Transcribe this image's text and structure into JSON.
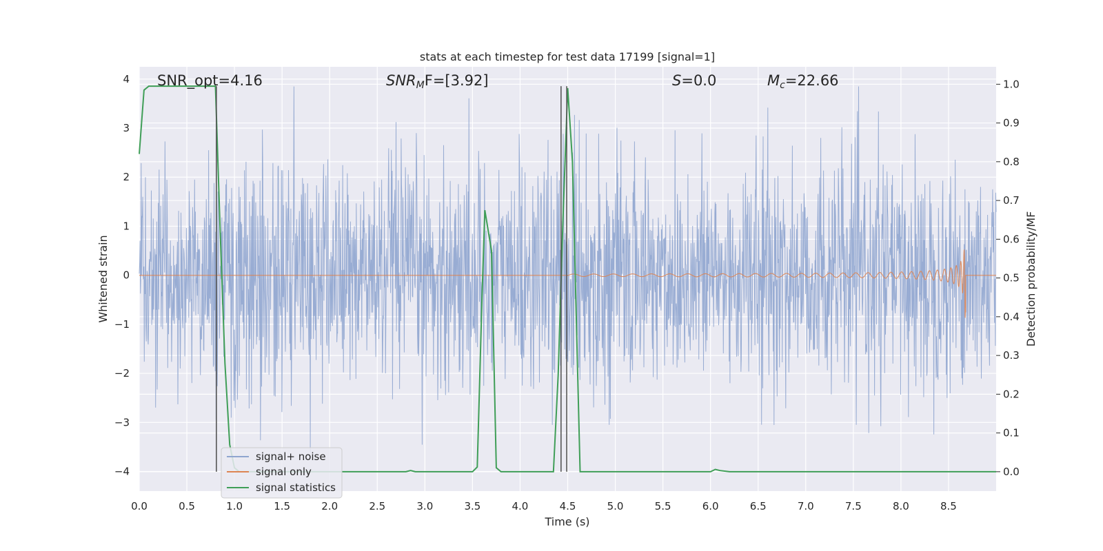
{
  "chart_data": {
    "type": "line",
    "title": "stats at each timestep for test data 17199 [signal=1]",
    "xlabel": "Time (s)",
    "ylabel": "Whitened strain",
    "ylabel_right": "Detection probability/MF",
    "xlim": [
      0,
      9.0
    ],
    "ylim": [
      -4.4,
      4.25
    ],
    "ylim_right": [
      -0.05,
      1.045
    ],
    "x_ticks": [
      "0.0",
      "0.5",
      "1.0",
      "1.5",
      "2.0",
      "2.5",
      "3.0",
      "3.5",
      "4.0",
      "4.5",
      "5.0",
      "5.5",
      "6.0",
      "6.5",
      "7.0",
      "7.5",
      "8.0",
      "8.5"
    ],
    "y_ticks": [
      "−4",
      "−3",
      "−2",
      "−1",
      "0",
      "1",
      "2",
      "3",
      "4"
    ],
    "y_ticks_right": [
      "0.0",
      "0.1",
      "0.2",
      "0.3",
      "0.4",
      "0.5",
      "0.6",
      "0.7",
      "0.8",
      "0.9",
      "1.0"
    ],
    "grid": true,
    "legend_position": "lower-left",
    "annotations": {
      "snr_opt": "SNR_opt=4.16",
      "snr_mf_base": "SNR",
      "snr_mf_sub": "M",
      "snr_mf_rest": "F=[3.92]",
      "s_var": "S",
      "s_rest": "=0.0",
      "mc_base": "M",
      "mc_sub": "c",
      "mc_rest": "=22.66"
    },
    "vertical_lines_x": [
      0.81,
      4.43,
      4.49
    ],
    "series": [
      {
        "name": "signal+ noise",
        "color": "#8fa5cf",
        "description_values": "Gaussian-like whitened noise, approx. range -3.9 to 3.8 over 0 to 9.0 s"
      },
      {
        "name": "signal only",
        "color": "#dd8452",
        "chirp_start": 4.5,
        "chirp_end": 8.68,
        "chirp_peak_amplitude": 0.9
      },
      {
        "name": "signal statistics",
        "color": "#3f9e57",
        "x": [
          0.0,
          0.05,
          0.1,
          0.15,
          0.25,
          0.35,
          0.45,
          0.55,
          0.65,
          0.75,
          0.8,
          0.85,
          0.9,
          0.95,
          1.0,
          1.05,
          1.1,
          1.2,
          1.5,
          2.0,
          2.5,
          2.8,
          2.85,
          2.9,
          3.0,
          3.5,
          3.55,
          3.6,
          3.63,
          3.7,
          3.75,
          3.8,
          4.0,
          4.35,
          4.4,
          4.45,
          4.5,
          4.55,
          4.6,
          4.63,
          5.0,
          5.5,
          6.0,
          6.05,
          6.1,
          6.2,
          6.5,
          7.0,
          7.5,
          8.0,
          8.5,
          9.0
        ],
        "y": [
          0.82,
          0.985,
          0.995,
          0.995,
          0.995,
          0.995,
          0.995,
          0.995,
          0.995,
          0.995,
          0.995,
          0.62,
          0.28,
          0.07,
          0.01,
          0.0,
          0.0,
          0.0,
          0.0,
          0.0,
          0.0,
          0.0,
          0.003,
          0.0,
          0.0,
          0.0,
          0.012,
          0.45,
          0.675,
          0.57,
          0.01,
          0.0,
          0.0,
          0.0,
          0.25,
          0.65,
          0.99,
          0.8,
          0.3,
          0.0,
          0.0,
          0.0,
          0.0,
          0.006,
          0.003,
          0.0,
          0.0,
          0.0,
          0.0,
          0.0,
          0.0,
          0.0
        ]
      }
    ]
  }
}
